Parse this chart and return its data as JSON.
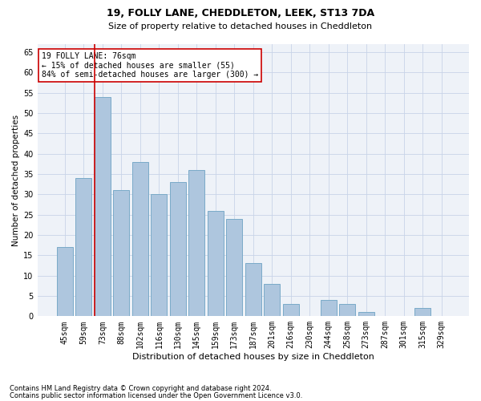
{
  "title1": "19, FOLLY LANE, CHEDDLETON, LEEK, ST13 7DA",
  "title2": "Size of property relative to detached houses in Cheddleton",
  "xlabel": "Distribution of detached houses by size in Cheddleton",
  "ylabel": "Number of detached properties",
  "categories": [
    "45sqm",
    "59sqm",
    "73sqm",
    "88sqm",
    "102sqm",
    "116sqm",
    "130sqm",
    "145sqm",
    "159sqm",
    "173sqm",
    "187sqm",
    "201sqm",
    "216sqm",
    "230sqm",
    "244sqm",
    "258sqm",
    "273sqm",
    "287sqm",
    "301sqm",
    "315sqm",
    "329sqm"
  ],
  "values": [
    17,
    34,
    54,
    31,
    38,
    30,
    33,
    36,
    26,
    24,
    13,
    8,
    3,
    0,
    4,
    3,
    1,
    0,
    0,
    2,
    0
  ],
  "bar_color": "#aec6de",
  "bar_edge_color": "#7aaac8",
  "marker_color": "#cc0000",
  "annotation_line1": "19 FOLLY LANE: 76sqm",
  "annotation_line2": "← 15% of detached houses are smaller (55)",
  "annotation_line3": "84% of semi-detached houses are larger (300) →",
  "annotation_box_color": "#ffffff",
  "annotation_box_edge": "#cc0000",
  "ylim": [
    0,
    67
  ],
  "yticks": [
    0,
    5,
    10,
    15,
    20,
    25,
    30,
    35,
    40,
    45,
    50,
    55,
    60,
    65
  ],
  "footnote1": "Contains HM Land Registry data © Crown copyright and database right 2024.",
  "footnote2": "Contains public sector information licensed under the Open Government Licence v3.0.",
  "bg_color": "#eef2f8",
  "grid_color": "#c8d4e8",
  "title1_fontsize": 9,
  "title2_fontsize": 8,
  "xlabel_fontsize": 8,
  "ylabel_fontsize": 7.5,
  "tick_fontsize": 7,
  "footnote_fontsize": 6,
  "annot_fontsize": 7
}
